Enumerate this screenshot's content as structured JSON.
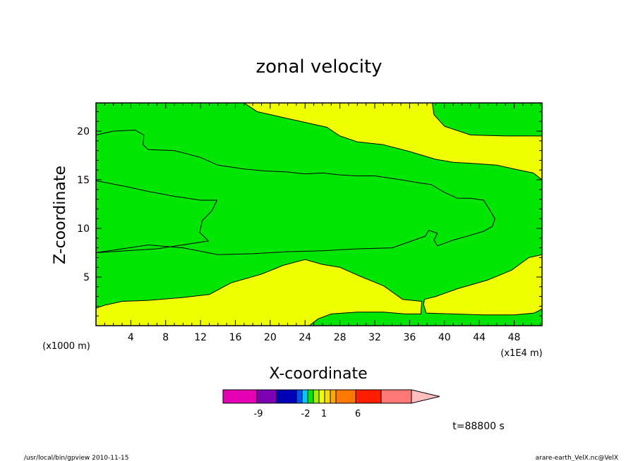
{
  "chart_data": {
    "type": "contour",
    "title": "zonal velocity",
    "xlabel": "X-coordinate",
    "ylabel": "Z-coordinate",
    "x_unit": "(x1E4 m)",
    "y_unit": "(x1000 m)",
    "xlim": [
      0,
      51.2
    ],
    "ylim": [
      0,
      22.9
    ],
    "x_ticks": [
      4,
      8,
      12,
      16,
      20,
      24,
      28,
      32,
      36,
      40,
      44,
      48
    ],
    "y_ticks": [
      5,
      10,
      15,
      20
    ],
    "fill_colors": {
      "positive": "#f0ff00",
      "negative": "#00e600"
    },
    "regions": [
      {
        "sign": "negative",
        "boundary": [
          [
            0,
            22.9
          ],
          [
            17,
            22.9
          ],
          [
            18.5,
            22
          ],
          [
            22,
            21.3
          ],
          [
            26.5,
            20.4
          ],
          [
            28,
            19.5
          ],
          [
            30,
            18.9
          ],
          [
            33,
            18.6
          ],
          [
            36,
            17.9
          ],
          [
            39,
            17.1
          ],
          [
            41,
            16.8
          ],
          [
            43,
            16.7
          ],
          [
            46,
            16.5
          ],
          [
            48,
            16.1
          ],
          [
            50.2,
            15.7
          ],
          [
            51.2,
            15
          ],
          [
            51.2,
            7.3
          ],
          [
            49.7,
            7
          ],
          [
            47.7,
            5.7
          ],
          [
            45,
            4.7
          ],
          [
            41.5,
            3.8
          ],
          [
            39,
            3
          ],
          [
            37.7,
            2.7
          ],
          [
            37.6,
            2.2
          ],
          [
            37.9,
            1.3
          ],
          [
            41,
            1.2
          ],
          [
            44.5,
            1.1
          ],
          [
            48,
            1.1
          ],
          [
            50.3,
            1.3
          ],
          [
            51.2,
            1.7
          ],
          [
            51.2,
            0
          ],
          [
            24.5,
            0
          ],
          [
            25.5,
            0.7
          ],
          [
            27,
            1.2
          ],
          [
            30,
            1.4
          ],
          [
            33,
            1.4
          ],
          [
            35.5,
            1.2
          ],
          [
            37.3,
            1.2
          ],
          [
            37.4,
            2.5
          ],
          [
            35.2,
            2.7
          ],
          [
            33,
            4.1
          ],
          [
            30,
            5.2
          ],
          [
            28,
            6
          ],
          [
            26,
            6.3
          ],
          [
            24,
            6.8
          ],
          [
            21.5,
            6.2
          ],
          [
            19,
            5.3
          ],
          [
            15.5,
            4.4
          ],
          [
            13,
            3.2
          ],
          [
            10,
            2.9
          ],
          [
            6,
            2.6
          ],
          [
            3,
            2.5
          ],
          [
            1,
            2.1
          ],
          [
            0,
            1.8
          ]
        ]
      },
      {
        "sign": "negative",
        "boundary": [
          [
            0,
            19.6
          ],
          [
            2,
            20
          ],
          [
            4.5,
            20.1
          ],
          [
            5.5,
            19.6
          ],
          [
            5.4,
            18.6
          ],
          [
            6,
            18.1
          ],
          [
            9,
            18
          ],
          [
            12,
            17.3
          ],
          [
            14,
            16.5
          ],
          [
            17,
            16.1
          ],
          [
            19.5,
            15.9
          ],
          [
            22,
            15.8
          ],
          [
            24,
            15.6
          ],
          [
            26,
            15.7
          ],
          [
            28,
            15.5
          ],
          [
            30,
            15.4
          ],
          [
            32,
            15.4
          ],
          [
            35,
            15
          ],
          [
            37,
            14.7
          ],
          [
            38.5,
            14.5
          ],
          [
            40,
            13.7
          ],
          [
            41.5,
            13.1
          ],
          [
            43,
            13.1
          ],
          [
            44.5,
            12.9
          ],
          [
            45.2,
            11.9
          ],
          [
            45.8,
            11
          ],
          [
            45.5,
            10.2
          ],
          [
            44.5,
            9.7
          ],
          [
            43,
            9.3
          ],
          [
            41,
            8.8
          ],
          [
            39.2,
            8.2
          ],
          [
            38.8,
            8.8
          ],
          [
            39.2,
            9.5
          ],
          [
            38.2,
            9.8
          ],
          [
            37.8,
            9.2
          ],
          [
            34,
            8
          ],
          [
            30,
            7.9
          ],
          [
            26,
            7.7
          ],
          [
            22,
            7.6
          ],
          [
            18,
            7.4
          ],
          [
            14,
            7.3
          ],
          [
            10,
            8
          ],
          [
            6,
            8.3
          ],
          [
            0,
            7.5
          ],
          [
            0,
            14.9
          ],
          [
            3.5,
            14.3
          ],
          [
            6,
            13.8
          ],
          [
            9,
            13.3
          ],
          [
            12,
            12.9
          ],
          [
            13.9,
            12.9
          ],
          [
            13.3,
            11.8
          ],
          [
            12.2,
            10.8
          ],
          [
            11.9,
            9.6
          ],
          [
            12.9,
            8.7
          ],
          [
            7,
            7.9
          ],
          [
            0,
            7.5
          ]
        ]
      },
      {
        "sign": "negative",
        "boundary": [
          [
            38.6,
            22.9
          ],
          [
            51.2,
            22.9
          ],
          [
            51.2,
            19.5
          ],
          [
            47,
            19.5
          ],
          [
            43,
            19.6
          ],
          [
            40,
            20.5
          ],
          [
            38.8,
            21.7
          ]
        ]
      }
    ],
    "colorbar": {
      "colors": [
        "#e600b4",
        "#7d00b4",
        "#0000b4",
        "#0050ff",
        "#00c8ff",
        "#00e600",
        "#a0f000",
        "#f0ff00",
        "#ffdc00",
        "#ffaa00",
        "#ff7800",
        "#ff1e00",
        "#ff7878",
        "#ffbebe"
      ],
      "labels": [
        "-9",
        "-2",
        "1",
        "6"
      ]
    },
    "annotation": "t=88800 s",
    "footer_left": "/usr/local/bin/gpview   2010-11-15",
    "footer_right": "arare-earth_VelX.nc@VelX",
    "x_unit_left": "(x1000 m)"
  }
}
